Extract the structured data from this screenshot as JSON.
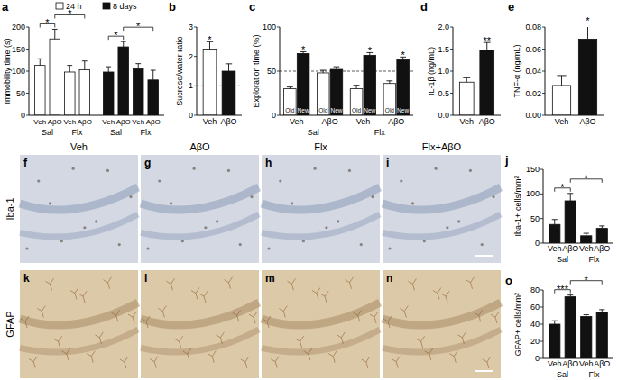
{
  "chart_data": [
    {
      "title": "a",
      "type": "bar",
      "y_label": "Immobility time (s)",
      "categories": [
        "Veh",
        "AβO",
        "Veh",
        "AβO"
      ],
      "groups": [
        "Sal",
        "Flx"
      ],
      "series": [
        {
          "name": "24 h",
          "color": "#ffffff",
          "values": [
            113,
            173,
            98,
            103
          ],
          "errors": [
            15,
            22,
            15,
            20
          ]
        },
        {
          "name": "8 days",
          "color": "#111111",
          "values": [
            98,
            155,
            105,
            80
          ],
          "errors": [
            12,
            12,
            12,
            22
          ]
        }
      ],
      "ylim": [
        0,
        200
      ],
      "yticks": [
        0,
        50,
        100,
        150,
        200
      ],
      "legend": "top",
      "significance": [
        {
          "label": "*",
          "series": 0,
          "from": 0,
          "to": 1
        },
        {
          "label": "*",
          "series": 0,
          "from": 1,
          "to": 3
        },
        {
          "label": "*",
          "series": 1,
          "from": 0,
          "to": 1
        },
        {
          "label": "*",
          "series": 1,
          "from": 1,
          "to": 3
        }
      ]
    },
    {
      "title": "b",
      "type": "bar",
      "y_label": "Sucrose/water ratio",
      "categories": [
        "Veh",
        "AβO"
      ],
      "values": [
        2.25,
        1.5
      ],
      "errors": [
        0.25,
        0.25
      ],
      "colors": [
        "#ffffff",
        "#111111"
      ],
      "ylim": [
        0,
        3
      ],
      "yticks": [
        0,
        1,
        2,
        3
      ],
      "reference_line": 1,
      "significance": [
        {
          "label": "*",
          "at": 0
        }
      ]
    },
    {
      "title": "c",
      "type": "bar",
      "y_label": "Exploration time (%)",
      "categories": [
        "Veh",
        "AβO",
        "Veh",
        "AβO"
      ],
      "groups": [
        "Sal",
        "Flx"
      ],
      "series": [
        {
          "name": "Old",
          "color": "#ffffff",
          "values": [
            30,
            48,
            30,
            36
          ],
          "errors": [
            2,
            3,
            4,
            3
          ]
        },
        {
          "name": "New",
          "color": "#111111",
          "values": [
            70,
            52,
            68,
            63
          ],
          "errors": [
            2,
            3,
            3,
            3
          ]
        }
      ],
      "ylim": [
        0,
        100
      ],
      "yticks": [
        0,
        50,
        100
      ],
      "reference_line": 50,
      "significance": [
        {
          "label": "*",
          "series": 1,
          "at": 0
        },
        {
          "label": "*",
          "series": 1,
          "at": 2
        },
        {
          "label": "*",
          "series": 1,
          "at": 3
        }
      ]
    },
    {
      "title": "d",
      "type": "bar",
      "y_label": "IL-1β (ng/mL)",
      "categories": [
        "Veh",
        "AβO"
      ],
      "values": [
        0.75,
        1.47
      ],
      "errors": [
        0.1,
        0.18
      ],
      "colors": [
        "#ffffff",
        "#111111"
      ],
      "ylim": [
        0,
        2
      ],
      "yticks": [
        {
          "value": 0,
          "label": "0.0"
        },
        0.5,
        {
          "value": 1,
          "label": "1.0"
        },
        1.5,
        {
          "value": 2,
          "label": "2.0"
        }
      ],
      "significance": [
        {
          "label": "**",
          "at": 1
        }
      ]
    },
    {
      "title": "e",
      "type": "bar",
      "y_label": "TNF-α (ng/mL)",
      "categories": [
        "Veh",
        "AβO"
      ],
      "values": [
        0.027,
        0.069
      ],
      "errors": [
        0.009,
        0.015
      ],
      "colors": [
        "#ffffff",
        "#111111"
      ],
      "ylim": [
        0,
        0.08
      ],
      "yticks": [
        {
          "value": 0,
          "label": "0.00"
        },
        {
          "value": 0.02,
          "label": "0.02"
        },
        {
          "value": 0.04,
          "label": "0.04"
        },
        {
          "value": 0.06,
          "label": "0.06"
        },
        {
          "value": 0.08,
          "label": "0.08"
        }
      ],
      "significance": [
        {
          "label": "*",
          "at": 1
        }
      ]
    },
    {
      "title": "j",
      "type": "bar",
      "y_label": "Iba-1+ cells/mm²",
      "categories": [
        "Veh",
        "AβO",
        "Veh",
        "AβO"
      ],
      "groups": [
        "Sal",
        "Flx"
      ],
      "values": [
        38,
        86,
        15,
        30
      ],
      "errors": [
        10,
        15,
        5,
        5
      ],
      "color": "#111111",
      "ylim": [
        0,
        150
      ],
      "yticks": [
        0,
        50,
        100,
        150
      ],
      "significance": [
        {
          "label": "*",
          "from": 0,
          "to": 1
        },
        {
          "label": "*",
          "from": 1,
          "to": 3
        }
      ]
    },
    {
      "title": "o",
      "type": "bar",
      "y_label": "GFAP+ cells/mm²",
      "categories": [
        "Veh",
        "AβO",
        "Veh",
        "AβO"
      ],
      "groups": [
        "Sal",
        "Flx"
      ],
      "values": [
        40,
        72,
        49,
        54
      ],
      "errors": [
        4,
        2,
        2,
        3
      ],
      "color": "#111111",
      "ylim": [
        0,
        80
      ],
      "yticks": [
        0,
        20,
        40,
        60,
        80
      ],
      "significance": [
        {
          "label": "***",
          "from": 0,
          "to": 1
        },
        {
          "label": "*",
          "from": 1,
          "to": 3
        }
      ]
    }
  ],
  "image_panels": {
    "columns": [
      "Veh",
      "AβO",
      "Flx",
      "Flx+AβO"
    ],
    "rows": [
      {
        "label": "Iba-1",
        "panels": [
          "f",
          "g",
          "h",
          "i"
        ]
      },
      {
        "label": "GFAP",
        "panels": [
          "k",
          "l",
          "m",
          "n"
        ]
      }
    ]
  }
}
